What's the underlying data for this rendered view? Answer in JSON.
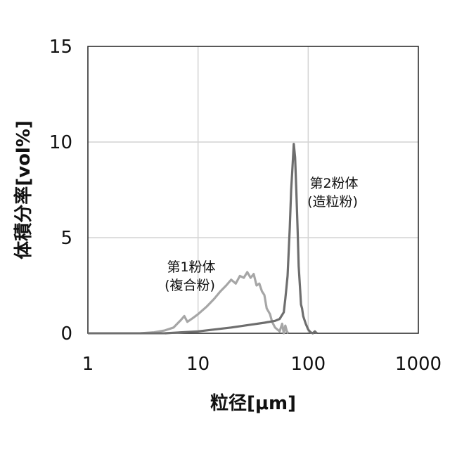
{
  "chart_data": {
    "type": "line",
    "xlabel": "粒径[μm]",
    "ylabel": "体積分率[vol%]",
    "xscale": "log",
    "xlim": [
      1,
      1000
    ],
    "ylim": [
      0,
      15
    ],
    "x_ticks": [
      "1",
      "10",
      "100",
      "1000"
    ],
    "y_ticks": [
      "0",
      "5",
      "10",
      "15"
    ],
    "grid": true,
    "series": [
      {
        "name": "第1粉体(複合粉)",
        "color": "#a6a6a6",
        "x": [
          3.0,
          4.0,
          5.0,
          6.0,
          7.0,
          7.5,
          8.0,
          9.0,
          10,
          12,
          14,
          16,
          18,
          20,
          22,
          24,
          26,
          28,
          30,
          32,
          34,
          36,
          38,
          40,
          42,
          45,
          47,
          50,
          55,
          58,
          60,
          62,
          64,
          66
        ],
        "y": [
          0.0,
          0.05,
          0.15,
          0.3,
          0.7,
          0.9,
          0.6,
          0.8,
          1.0,
          1.4,
          1.8,
          2.2,
          2.5,
          2.8,
          2.6,
          3.0,
          2.9,
          3.2,
          2.9,
          3.1,
          2.5,
          2.6,
          2.2,
          2.0,
          1.3,
          1.0,
          0.6,
          0.3,
          0.1,
          0.5,
          0.0,
          0.4,
          0.1,
          0.0
        ]
      },
      {
        "name": "第2粉体(造粒粉)",
        "color": "#6e6e6e",
        "x": [
          5,
          10,
          20,
          30,
          40,
          50,
          55,
          60,
          62,
          65,
          68,
          70,
          72,
          74,
          76,
          78,
          80,
          82,
          84,
          86,
          88,
          90,
          95,
          100,
          105,
          110,
          115,
          120
        ],
        "y": [
          0.0,
          0.1,
          0.3,
          0.45,
          0.55,
          0.65,
          0.75,
          1.1,
          1.8,
          3.0,
          5.5,
          7.5,
          8.7,
          9.9,
          9.2,
          7.5,
          5.5,
          3.5,
          2.5,
          1.5,
          1.3,
          0.9,
          0.5,
          0.2,
          0.05,
          0.0,
          0.1,
          0.0
        ]
      }
    ],
    "annotations": [
      {
        "line1": "第1粉体",
        "line2": "(複合粉)"
      },
      {
        "line1": "第2粉体",
        "line2": "(造粒粉)"
      }
    ]
  }
}
